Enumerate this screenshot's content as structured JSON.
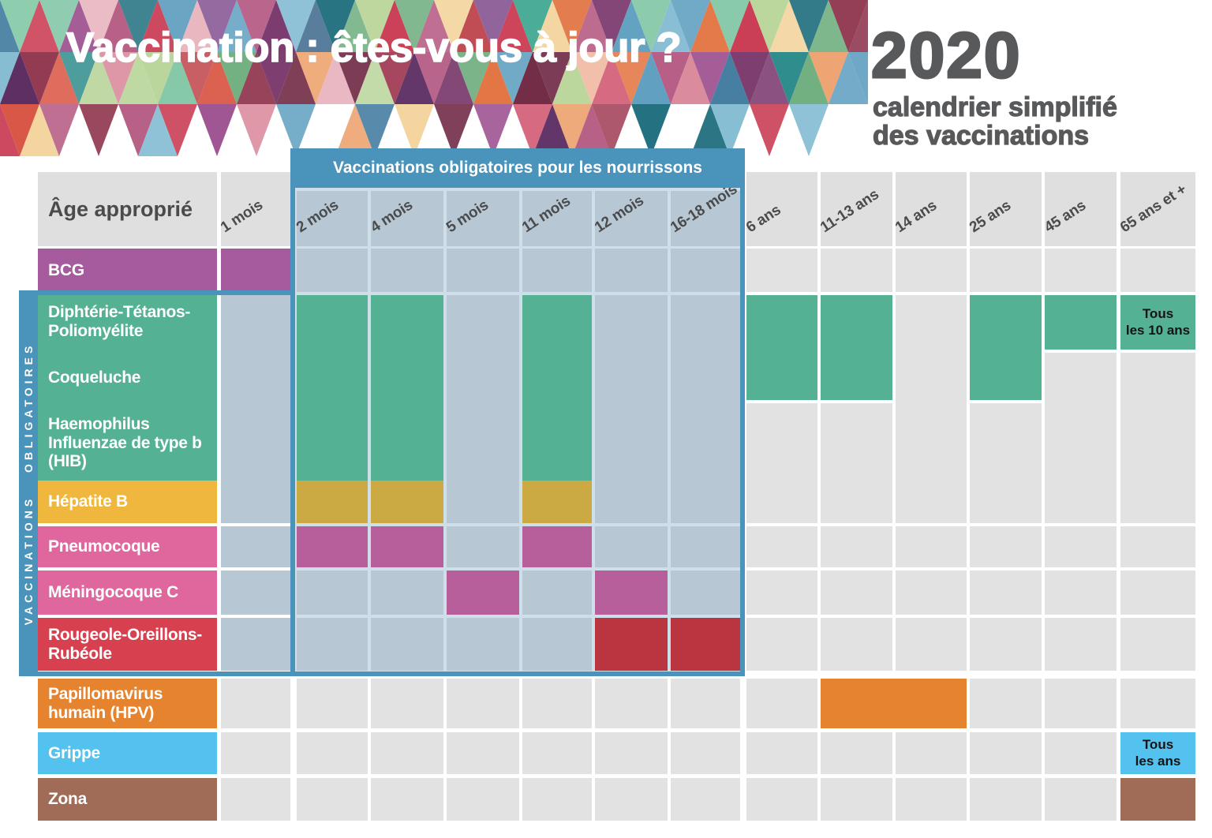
{
  "title": "Vaccination : êtes-vous à jour ?",
  "year_block": {
    "year": "2020",
    "subtitle": "calendrier simplifié\ndes vaccinations"
  },
  "infant_box": {
    "title": "Vaccinations obligatoires pour les nourrissons"
  },
  "side_strip": {
    "label": "VACCINATIONS OBLIGATOIRES"
  },
  "age_header": "Âge approprié",
  "age_columns": [
    {
      "label": "1 mois",
      "in_box": false
    },
    {
      "label": "2 mois",
      "in_box": true
    },
    {
      "label": "4 mois",
      "in_box": true
    },
    {
      "label": "5 mois",
      "in_box": true
    },
    {
      "label": "11 mois",
      "in_box": true
    },
    {
      "label": "12 mois",
      "in_box": true
    },
    {
      "label": "16-18 mois",
      "in_box": true
    },
    {
      "label": "6 ans",
      "in_box": false
    },
    {
      "label": "11-13 ans",
      "in_box": false
    },
    {
      "label": "14 ans",
      "in_box": false
    },
    {
      "label": "25 ans",
      "in_box": false
    },
    {
      "label": "45 ans",
      "in_box": false
    },
    {
      "label": "65 ans et +",
      "in_box": false
    }
  ],
  "rows": [
    {
      "id": "bcg",
      "label": "BCG",
      "doses": [
        "1 mois"
      ]
    },
    {
      "id": "dtp",
      "labels": [
        "Diphtérie-Tétanos-\nPoliomyélite",
        "Coqueluche",
        "Haemophilus\nInfluenzae de type b\n(HIB)"
      ],
      "doses": [
        "2 mois",
        "4 mois",
        "11 mois"
      ],
      "boosters_with_coqueluche": [
        "6 ans",
        "11-13 ans",
        "25 ans"
      ],
      "boosters_dtp_only": [
        "45 ans",
        "65 ans et +"
      ],
      "booster_note": "Tous\nles 10 ans"
    },
    {
      "id": "hepatite_b",
      "label": "Hépatite B",
      "doses": [
        "2 mois",
        "4 mois",
        "11 mois"
      ]
    },
    {
      "id": "pneumocoque",
      "label": "Pneumocoque",
      "doses": [
        "2 mois",
        "4 mois",
        "11 mois"
      ]
    },
    {
      "id": "meningocoque_c",
      "label": "Méningocoque C",
      "doses": [
        "5 mois",
        "12 mois"
      ]
    },
    {
      "id": "ror",
      "label": "Rougeole-Oreillons-\nRubéole",
      "doses": [
        "12 mois",
        "16-18 mois"
      ]
    },
    {
      "id": "hpv",
      "label": "Papillomavirus\nhumain (HPV)",
      "doses": [
        "11-13 ans",
        "14 ans"
      ],
      "merged": true
    },
    {
      "id": "grippe",
      "label": "Grippe",
      "doses": [
        "65 ans et +"
      ],
      "note": "Tous\nles ans"
    },
    {
      "id": "zona",
      "label": "Zona",
      "doses": [
        "65 ans et +"
      ]
    }
  ],
  "chart_data": {
    "type": "table",
    "title": "Vaccination : êtes-vous à jour ? — 2020 calendrier simplifié des vaccinations",
    "columns": [
      "1 mois",
      "2 mois",
      "4 mois",
      "5 mois",
      "11 mois",
      "12 mois",
      "16-18 mois",
      "6 ans",
      "11-13 ans",
      "14 ans",
      "25 ans",
      "45 ans",
      "65 ans et +"
    ],
    "series": [
      {
        "name": "BCG",
        "values": [
          "1 mois"
        ]
      },
      {
        "name": "Diphtérie-Tétanos-Poliomyélite / Coqueluche / Haemophilus Influenzae de type b (HIB)",
        "values": [
          "2 mois",
          "4 mois",
          "11 mois",
          "6 ans",
          "11-13 ans",
          "25 ans",
          "45 ans",
          "65 ans et + (Tous les 10 ans)"
        ]
      },
      {
        "name": "Hépatite B",
        "values": [
          "2 mois",
          "4 mois",
          "11 mois"
        ]
      },
      {
        "name": "Pneumocoque",
        "values": [
          "2 mois",
          "4 mois",
          "11 mois"
        ]
      },
      {
        "name": "Méningocoque C",
        "values": [
          "5 mois",
          "12 mois"
        ]
      },
      {
        "name": "Rougeole-Oreillons-Rubéole",
        "values": [
          "12 mois",
          "16-18 mois"
        ]
      },
      {
        "name": "Papillomavirus humain (HPV)",
        "values": [
          "11-13 ans",
          "14 ans"
        ]
      },
      {
        "name": "Grippe",
        "values": [
          "65 ans et + (Tous les ans)"
        ]
      },
      {
        "name": "Zona",
        "values": [
          "65 ans et +"
        ]
      }
    ]
  },
  "colors": {
    "frame_blue": "#4a93ba",
    "cell_empty_box": "#b7c8d4",
    "box_gridline": "#cfdfe9",
    "cell_empty_grey": "#e2e2e2",
    "header_grey": "#dfdfdf",
    "bcg": "#a55b9d",
    "dtp": "#55b193",
    "hepatite_b_label": "#efb73e",
    "hepatite_b_cell": "#cbaa43",
    "pneumocoque_label": "#e0679e",
    "pneumocoque_cell": "#b65f9b",
    "meningocoque_c_label": "#e0679e",
    "meningocoque_c_cell": "#b65f9b",
    "ror_label": "#d6404f",
    "ror_cell": "#ba3540",
    "hpv": "#e6832e",
    "grippe": "#54c2ee",
    "zona": "#a06b57",
    "title_text": "#ffffff",
    "year_text": "#58595b",
    "age_text": "#4a4b4d",
    "note_text": "#141414"
  },
  "mosaic_palette": [
    "#7fc6a4",
    "#49ab96",
    "#2e8c8c",
    "#206e7e",
    "#a13c55",
    "#c04b52",
    "#d95746",
    "#e2723f",
    "#eda06b",
    "#f3d39b",
    "#8c2f48",
    "#6d2440",
    "#9c4f8e",
    "#7b3a6d",
    "#5d2f63",
    "#b75f86",
    "#d98a9b",
    "#e7b3bd",
    "#5f9fc0",
    "#87bdd3",
    "#3f7a9e",
    "#b9d59a",
    "#6fae7e",
    "#c8374f",
    "#8a5a96",
    "#d4647c",
    "#f0b8a0",
    "#406b8f"
  ]
}
